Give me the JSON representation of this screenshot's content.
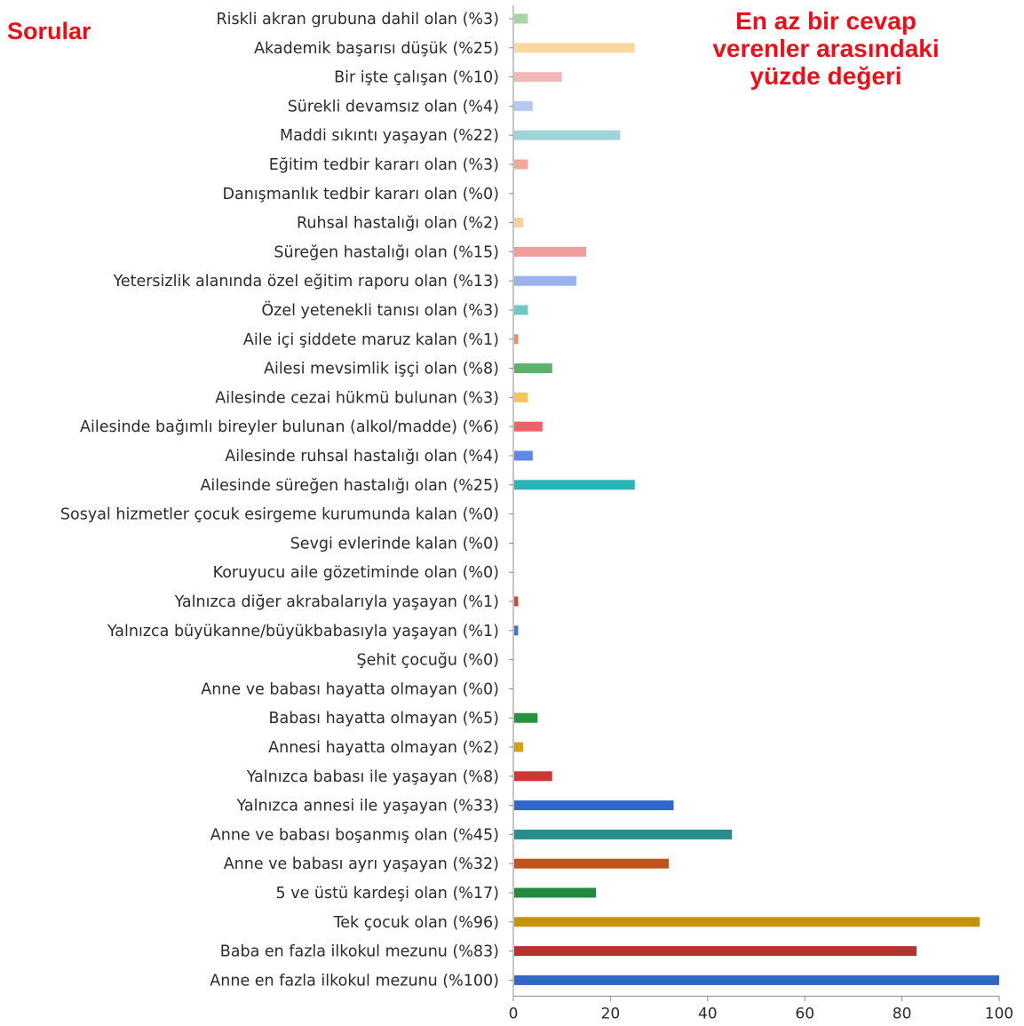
{
  "header": {
    "side_title": "Sorular",
    "note_lines": [
      "En az bir cevap",
      "verenler arasındaki",
      "yüzde değeri"
    ]
  },
  "chart_data": {
    "type": "bar",
    "orientation": "horizontal",
    "title": "",
    "xlabel": "",
    "ylabel": "",
    "xlim": [
      0,
      100
    ],
    "xticks": [
      0,
      20,
      40,
      60,
      80,
      100
    ],
    "grid": false,
    "legend": "none",
    "categories": [
      "Riskli akran grubuna dahil olan (%3)",
      "Akademik başarısı düşük (%25)",
      "Bir işte çalışan (%10)",
      "Sürekli devamsız olan (%4)",
      "Maddi sıkıntı yaşayan (%22)",
      "Eğitim tedbir kararı olan (%3)",
      "Danışmanlık tedbir kararı olan (%0)",
      "Ruhsal hastalığı olan (%2)",
      "Süreğen hastalığı olan (%15)",
      "Yetersizlik alanında özel eğitim raporu olan (%13)",
      "Özel yetenekli tanısı olan (%3)",
      "Aile içi şiddete maruz kalan (%1)",
      "Ailesi mevsimlik işçi olan (%8)",
      "Ailesinde cezai hükmü bulunan (%3)",
      "Ailesinde bağımlı bireyler bulunan (alkol/madde) (%6)",
      "Ailesinde ruhsal hastalığı olan (%4)",
      "Ailesinde süreğen hastalığı olan (%25)",
      "Sosyal hizmetler çocuk esirgeme kurumunda kalan (%0)",
      "Sevgi evlerinde kalan (%0)",
      "Koruyucu aile gözetiminde olan (%0)",
      "Yalnızca diğer akrabalarıyla yaşayan (%1)",
      "Yalnızca büyükanne/büyükbabasıyla yaşayan (%1)",
      "Şehit çocuğu (%0)",
      "Anne ve babası hayatta olmayan (%0)",
      "Babası hayatta olmayan (%5)",
      "Annesi hayatta olmayan (%2)",
      "Yalnızca babası ile yaşayan (%8)",
      "Yalnızca annesi ile yaşayan (%33)",
      "Anne ve babası boşanmış olan (%45)",
      "Anne ve babası ayrı yaşayan (%32)",
      "5 ve üstü kardeşi olan (%17)",
      "Tek çocuk olan (%96)",
      "Baba en fazla ilkokul mezunu (%83)",
      "Anne en fazla ilkokul mezunu (%100)"
    ],
    "values": [
      3,
      25,
      10,
      4,
      22,
      3,
      0,
      2,
      15,
      13,
      3,
      1,
      8,
      3,
      6,
      4,
      25,
      0,
      0,
      0,
      1,
      1,
      0,
      0,
      5,
      2,
      8,
      33,
      45,
      32,
      17,
      96,
      83,
      100
    ],
    "colors": [
      "#a9d3a8",
      "#fbd8a2",
      "#f0b9b8",
      "#b7c9f3",
      "#9fd3d8",
      "#f3a79a",
      "#d0d0d0",
      "#fbd09e",
      "#ef9c9c",
      "#98b3f0",
      "#6ec8c5",
      "#f28a6c",
      "#5fb06c",
      "#f3c659",
      "#ef6265",
      "#5d8ae6",
      "#2eb3bb",
      "#a0a0a0",
      "#a0a0a0",
      "#a0a0a0",
      "#cd4840",
      "#3e75c8",
      "#a0a0a0",
      "#a0a0a0",
      "#269341",
      "#d4a013",
      "#cd3732",
      "#3266cc",
      "#2a8c8c",
      "#c2531c",
      "#238a3e",
      "#c7930f",
      "#b43230",
      "#3566c2"
    ]
  }
}
